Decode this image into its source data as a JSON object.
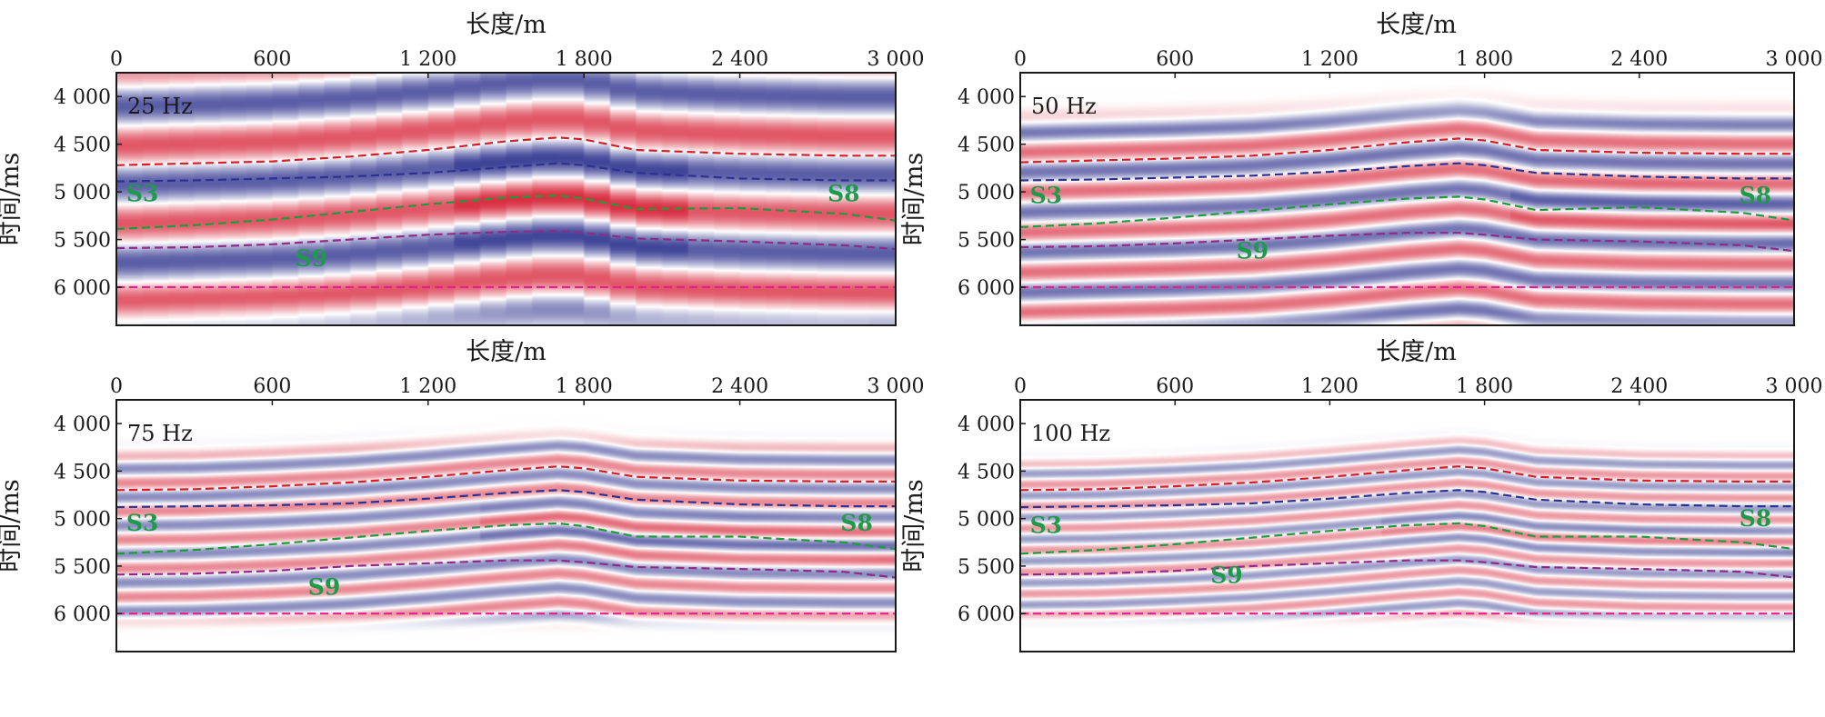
{
  "figure": {
    "background": "#ffffff",
    "frame_color": "#1a1a1a",
    "text_color": "#1a1a1a",
    "label_color": "#1d9a4a",
    "reflector_colors": {
      "red": "#d8263a",
      "blue": "#2a2f8c"
    },
    "line_colors": {
      "top_red": "#d21f2a",
      "top_blue": "#2c3290",
      "green": "#1f9a3c",
      "purple": "#8e2a8a",
      "magenta": "#e0238a"
    }
  },
  "chart_data": [
    {
      "type": "heatmap",
      "title": "",
      "frequency_label": "25 Hz",
      "xlabel": "长度/m",
      "ylabel": "时间/ms",
      "xlim": [
        0,
        3000
      ],
      "ylim": [
        3750,
        6400
      ],
      "y_reversed": true,
      "xticks": [
        0,
        600,
        1200,
        1800,
        2400,
        3000
      ],
      "xtick_labels": [
        "0",
        "600",
        "1 200",
        "1 800",
        "2 400",
        "3 000"
      ],
      "yticks": [
        4000,
        4500,
        5000,
        5500,
        6000
      ],
      "ytick_labels": [
        "4 000",
        "4 500",
        "5 000",
        "5 500",
        "6 000"
      ],
      "horizon_labels": [
        {
          "text": "S3",
          "x": 100,
          "y": 5100
        },
        {
          "text": "S8",
          "x": 2800,
          "y": 5100
        },
        {
          "text": "S9",
          "x": 750,
          "y": 5780
        }
      ],
      "horizons": {
        "x": [
          0,
          300,
          600,
          900,
          1200,
          1500,
          1700,
          1800,
          2000,
          2400,
          2800,
          3000
        ],
        "top_red": [
          4720,
          4700,
          4680,
          4630,
          4560,
          4470,
          4430,
          4450,
          4560,
          4600,
          4620,
          4620
        ],
        "top_blue": [
          4890,
          4880,
          4860,
          4840,
          4800,
          4740,
          4700,
          4720,
          4800,
          4860,
          4880,
          4880
        ],
        "green": [
          5390,
          5350,
          5290,
          5210,
          5130,
          5060,
          5040,
          5070,
          5180,
          5170,
          5230,
          5300
        ],
        "purple": [
          5590,
          5580,
          5550,
          5500,
          5450,
          5420,
          5410,
          5430,
          5490,
          5520,
          5560,
          5600
        ],
        "magenta": [
          6000,
          6000,
          6000,
          6000,
          6000,
          6000,
          6000,
          6000,
          6000,
          6000,
          6000,
          6000
        ]
      },
      "wavelet_period_ms": 820,
      "amplitude": 1.0,
      "energy_range_ms": [
        3800,
        6050
      ],
      "strong_zone": {
        "x": [
          1300,
          2200
        ],
        "strength": 0.9
      }
    },
    {
      "type": "heatmap",
      "title": "",
      "frequency_label": "50 Hz",
      "xlabel": "长度/m",
      "ylabel": "时间/ms",
      "xlim": [
        0,
        3000
      ],
      "ylim": [
        3750,
        6400
      ],
      "y_reversed": true,
      "xticks": [
        0,
        600,
        1200,
        1800,
        2400,
        3000
      ],
      "xtick_labels": [
        "0",
        "600",
        "1 200",
        "1 800",
        "2 400",
        "3 000"
      ],
      "yticks": [
        4000,
        4500,
        5000,
        5500,
        6000
      ],
      "ytick_labels": [
        "4 000",
        "4 500",
        "5 000",
        "5 500",
        "6 000"
      ],
      "horizon_labels": [
        {
          "text": "S3",
          "x": 100,
          "y": 5120
        },
        {
          "text": "S8",
          "x": 2850,
          "y": 5120
        },
        {
          "text": "S9",
          "x": 900,
          "y": 5700
        }
      ],
      "horizons": {
        "x": [
          0,
          300,
          600,
          900,
          1200,
          1500,
          1700,
          1800,
          2000,
          2400,
          2800,
          3000
        ],
        "top_red": [
          4690,
          4670,
          4650,
          4620,
          4560,
          4480,
          4440,
          4460,
          4560,
          4590,
          4600,
          4600
        ],
        "top_blue": [
          4880,
          4870,
          4850,
          4830,
          4790,
          4730,
          4700,
          4720,
          4800,
          4840,
          4860,
          4860
        ],
        "green": [
          5370,
          5330,
          5270,
          5200,
          5130,
          5070,
          5050,
          5080,
          5190,
          5160,
          5220,
          5300
        ],
        "purple": [
          5580,
          5570,
          5540,
          5500,
          5460,
          5430,
          5430,
          5450,
          5500,
          5520,
          5560,
          5620
        ],
        "magenta": [
          6000,
          6000,
          6000,
          6000,
          6000,
          6000,
          6000,
          6000,
          6000,
          6000,
          6000,
          6000
        ]
      },
      "wavelet_period_ms": 420,
      "amplitude": 0.85,
      "energy_range_ms": [
        4400,
        6250
      ],
      "strong_zone": {
        "x": [
          1900,
          3000
        ],
        "strength": 0.8
      }
    },
    {
      "type": "heatmap",
      "title": "",
      "frequency_label": "75 Hz",
      "xlabel": "长度/m",
      "ylabel": "时间/ms",
      "xlim": [
        0,
        3000
      ],
      "ylim": [
        3750,
        6400
      ],
      "y_reversed": true,
      "xticks": [
        0,
        600,
        1200,
        1800,
        2400,
        3000
      ],
      "xtick_labels": [
        "0",
        "600",
        "1 200",
        "1 800",
        "2 400",
        "3 000"
      ],
      "yticks": [
        4000,
        4500,
        5000,
        5500,
        6000
      ],
      "ytick_labels": [
        "4 000",
        "4 500",
        "5 000",
        "5 500",
        "6 000"
      ],
      "horizon_labels": [
        {
          "text": "S3",
          "x": 100,
          "y": 5130
        },
        {
          "text": "S8",
          "x": 2850,
          "y": 5130
        },
        {
          "text": "S9",
          "x": 800,
          "y": 5800
        }
      ],
      "horizons": {
        "x": [
          0,
          300,
          600,
          900,
          1200,
          1500,
          1700,
          1800,
          2000,
          2400,
          2800,
          3000
        ],
        "top_red": [
          4700,
          4690,
          4660,
          4620,
          4560,
          4490,
          4450,
          4470,
          4560,
          4600,
          4610,
          4610
        ],
        "top_blue": [
          4880,
          4870,
          4860,
          4840,
          4790,
          4730,
          4700,
          4720,
          4800,
          4850,
          4870,
          4870
        ],
        "green": [
          5370,
          5330,
          5270,
          5200,
          5130,
          5070,
          5050,
          5080,
          5190,
          5190,
          5250,
          5320
        ],
        "purple": [
          5590,
          5580,
          5550,
          5500,
          5470,
          5440,
          5440,
          5460,
          5510,
          5530,
          5560,
          5620
        ],
        "magenta": [
          6000,
          6000,
          6000,
          6000,
          6000,
          6000,
          6000,
          6000,
          6000,
          6000,
          6000,
          6000
        ]
      },
      "wavelet_period_ms": 300,
      "amplitude": 0.7,
      "energy_range_ms": [
        4400,
        5950
      ],
      "strong_zone": {
        "x": [
          1400,
          3000
        ],
        "strength": 0.95
      }
    },
    {
      "type": "heatmap",
      "title": "",
      "frequency_label": "100 Hz",
      "xlabel": "长度/m",
      "ylabel": "时间/ms",
      "xlim": [
        0,
        3000
      ],
      "ylim": [
        3750,
        6400
      ],
      "y_reversed": true,
      "xticks": [
        0,
        600,
        1200,
        1800,
        2400,
        3000
      ],
      "xtick_labels": [
        "0",
        "600",
        "1 200",
        "1 800",
        "2 400",
        "3 000"
      ],
      "yticks": [
        4000,
        4500,
        5000,
        5500,
        6000
      ],
      "ytick_labels": [
        "4 000",
        "4 500",
        "5 000",
        "5 500",
        "6 000"
      ],
      "horizon_labels": [
        {
          "text": "S3",
          "x": 100,
          "y": 5150
        },
        {
          "text": "S8",
          "x": 2850,
          "y": 5080
        },
        {
          "text": "S9",
          "x": 800,
          "y": 5680
        }
      ],
      "horizons": {
        "x": [
          0,
          300,
          600,
          900,
          1200,
          1500,
          1700,
          1800,
          2000,
          2400,
          2800,
          3000
        ],
        "top_red": [
          4700,
          4690,
          4660,
          4620,
          4560,
          4490,
          4450,
          4470,
          4560,
          4600,
          4610,
          4610
        ],
        "top_blue": [
          4880,
          4870,
          4860,
          4840,
          4790,
          4730,
          4700,
          4720,
          4800,
          4850,
          4870,
          4870
        ],
        "green": [
          5370,
          5330,
          5270,
          5200,
          5130,
          5070,
          5050,
          5080,
          5190,
          5190,
          5250,
          5320
        ],
        "purple": [
          5590,
          5580,
          5550,
          5500,
          5470,
          5440,
          5440,
          5460,
          5510,
          5530,
          5560,
          5620
        ],
        "magenta": [
          6000,
          6000,
          6000,
          6000,
          6000,
          6000,
          6000,
          6000,
          6000,
          6000,
          6000,
          6000
        ]
      },
      "wavelet_period_ms": 230,
      "amplitude": 0.6,
      "energy_range_ms": [
        4400,
        5950
      ],
      "strong_zone": {
        "x": [
          1400,
          3000
        ],
        "strength": 0.9
      }
    }
  ]
}
